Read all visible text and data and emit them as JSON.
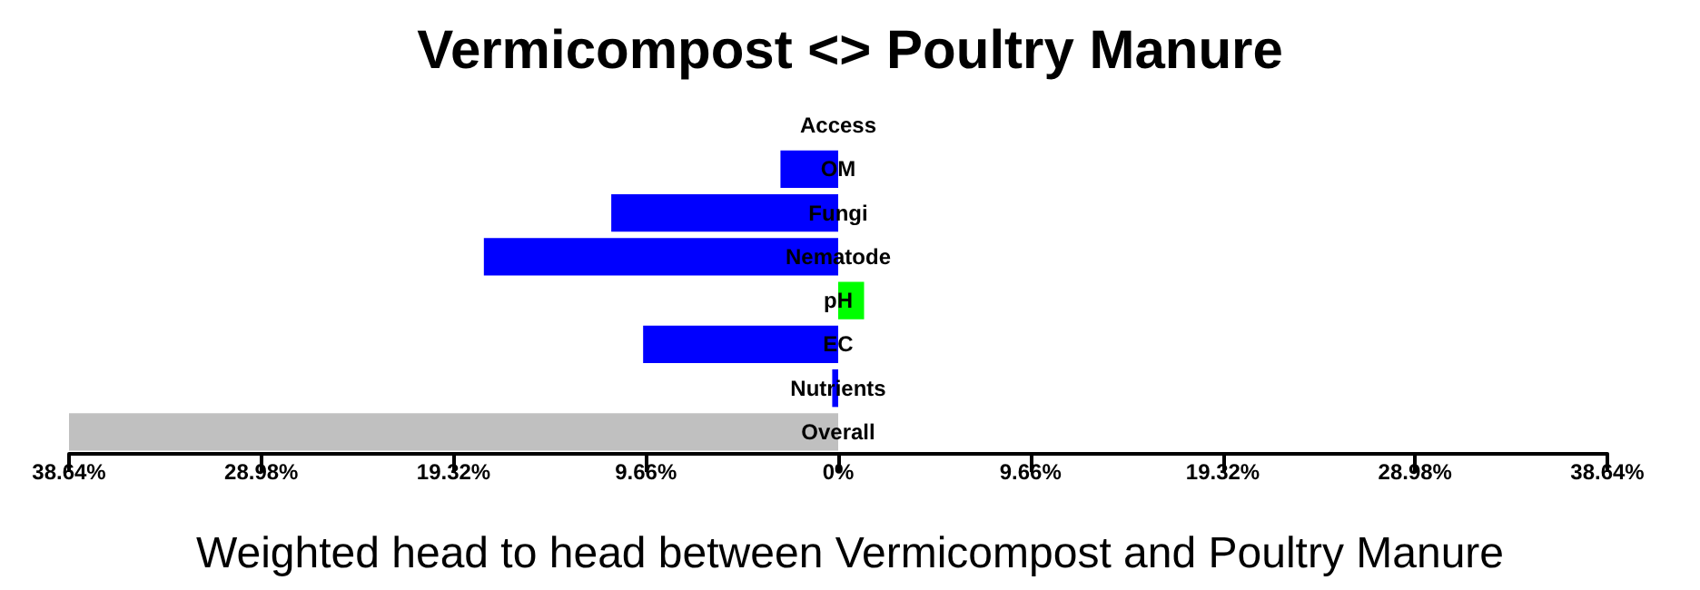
{
  "chart_data": {
    "type": "bar",
    "orientation": "horizontal",
    "title": "Vermicompost <> Poultry Manure",
    "xlabel": "Weighted head to head between Vermicompost and Poultry Manure",
    "categories": [
      "Access",
      "OM",
      "Fungi",
      "Nematode",
      "pH",
      "EC",
      "Nutrients",
      "Overall"
    ],
    "values": [
      0,
      -2.9,
      -11.4,
      -17.8,
      1.3,
      -9.8,
      -0.3,
      -38.64
    ],
    "colors": [
      "#0000ff",
      "#0000ff",
      "#0000ff",
      "#0000ff",
      "#00ff00",
      "#0000ff",
      "#0000ff",
      "#c0c0c0"
    ],
    "xlim": [
      -38.64,
      38.64
    ],
    "xticks": [
      {
        "value": -38.64,
        "label": "38.64%"
      },
      {
        "value": -28.98,
        "label": "28.98%"
      },
      {
        "value": -19.32,
        "label": "19.32%"
      },
      {
        "value": -9.66,
        "label": "9.66%"
      },
      {
        "value": 0,
        "label": "0%"
      },
      {
        "value": 9.66,
        "label": "9.66%"
      },
      {
        "value": 19.32,
        "label": "19.32%"
      },
      {
        "value": 28.98,
        "label": "28.98%"
      },
      {
        "value": 38.64,
        "label": "38.64%"
      }
    ],
    "grid": false
  }
}
